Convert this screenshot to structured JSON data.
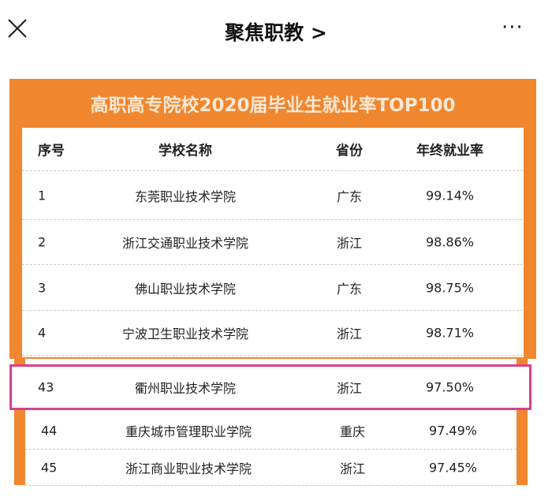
{
  "topbar": {
    "title": "聚焦职教 >",
    "close_icon": "close-icon",
    "more_icon": "more-icon",
    "more": "···"
  },
  "table": {
    "title": "高职高专院校2020届毕业生就业率TOP100",
    "headers": [
      "序号",
      "学校名称",
      "省份",
      "年终就业率"
    ],
    "rows": [
      {
        "rank": "1",
        "name": "东莞职业技术学院",
        "province": "广东",
        "rate": "99.14%"
      },
      {
        "rank": "2",
        "name": "浙江交通职业技术学院",
        "province": "浙江",
        "rate": "98.86%"
      },
      {
        "rank": "3",
        "name": "佛山职业技术学院",
        "province": "广东",
        "rate": "98.75%"
      },
      {
        "rank": "4",
        "name": "宁波卫生职业技术学院",
        "province": "浙江",
        "rate": "98.71%"
      }
    ],
    "highlight": {
      "rank": "43",
      "name": "衢州职业技术学院",
      "province": "浙江",
      "rate": "97.50%",
      "border_color": "#d9408a"
    },
    "rows2": [
      {
        "rank": "44",
        "name": "重庆城市管理职业学院",
        "province": "重庆",
        "rate": "97.49%"
      },
      {
        "rank": "45",
        "name": "浙江商业职业技术学院",
        "province": "浙江",
        "rate": "97.45%"
      }
    ],
    "accent": "#f0862e"
  }
}
